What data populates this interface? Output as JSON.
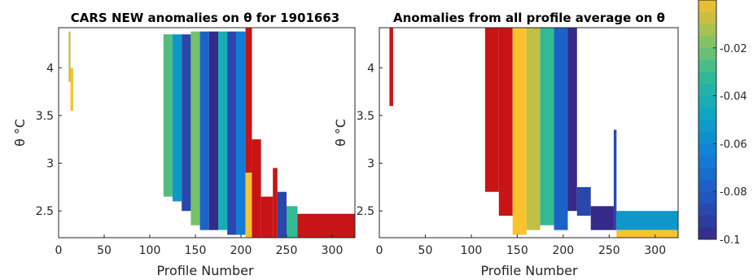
{
  "chart_data": [
    {
      "type": "heatmap",
      "title": "CARS NEW anomalies on θ for 1901663",
      "xlabel": "Profile Number",
      "ylabel": "θ °C",
      "xlim": [
        0,
        325
      ],
      "ylim": [
        2.22,
        4.42
      ],
      "xticks": [
        0,
        50,
        100,
        150,
        200,
        250,
        300
      ],
      "yticks": [
        2.5,
        3,
        3.5,
        4
      ],
      "colormap": "parula-like",
      "bands": [
        {
          "x0": 11,
          "x1": 13,
          "y0": 3.85,
          "y1": 4.38,
          "value": -0.02
        },
        {
          "x0": 13,
          "x1": 16,
          "y0": 3.55,
          "y1": 4.0,
          "value": -0.01
        },
        {
          "x0": 115,
          "x1": 125,
          "y0": 2.65,
          "y1": 4.35,
          "value": -0.035
        },
        {
          "x0": 125,
          "x1": 135,
          "y0": 2.6,
          "y1": 4.35,
          "value": -0.06
        },
        {
          "x0": 135,
          "x1": 145,
          "y0": 2.5,
          "y1": 4.35,
          "value": -0.09
        },
        {
          "x0": 145,
          "x1": 155,
          "y0": 2.35,
          "y1": 4.38,
          "value": -0.03
        },
        {
          "x0": 155,
          "x1": 165,
          "y0": 2.3,
          "y1": 4.38,
          "value": -0.08
        },
        {
          "x0": 165,
          "x1": 175,
          "y0": 2.3,
          "y1": 4.38,
          "value": -0.1
        },
        {
          "x0": 175,
          "x1": 185,
          "y0": 2.3,
          "y1": 4.38,
          "value": -0.05
        },
        {
          "x0": 185,
          "x1": 195,
          "y0": 2.25,
          "y1": 4.38,
          "value": -0.09
        },
        {
          "x0": 195,
          "x1": 205,
          "y0": 2.25,
          "y1": 4.38,
          "value": -0.07
        },
        {
          "x0": 205,
          "x1": 212,
          "y0": 2.9,
          "y1": 4.42,
          "value": 0.0
        },
        {
          "x0": 205,
          "x1": 212,
          "y0": 2.22,
          "y1": 2.9,
          "value": -0.01
        },
        {
          "x0": 212,
          "x1": 222,
          "y0": 2.22,
          "y1": 3.25,
          "value": 0.0
        },
        {
          "x0": 222,
          "x1": 235,
          "y0": 2.22,
          "y1": 2.65,
          "value": 0.0
        },
        {
          "x0": 235,
          "x1": 240,
          "y0": 2.22,
          "y1": 2.95,
          "value": 0.0
        },
        {
          "x0": 240,
          "x1": 250,
          "y0": 2.22,
          "y1": 2.7,
          "value": -0.09
        },
        {
          "x0": 250,
          "x1": 262,
          "y0": 2.22,
          "y1": 2.55,
          "value": -0.04
        },
        {
          "x0": 262,
          "x1": 325,
          "y0": 2.22,
          "y1": 2.47,
          "value": 0.0
        }
      ]
    },
    {
      "type": "heatmap",
      "title": "Anomalies from all profile average on θ",
      "xlabel": "Profile Number",
      "ylabel": "θ °C",
      "xlim": [
        0,
        325
      ],
      "ylim": [
        2.22,
        4.42
      ],
      "xticks": [
        0,
        50,
        100,
        150,
        200,
        250,
        300
      ],
      "yticks": [
        2.5,
        3,
        3.5,
        4
      ],
      "colormap": "parula-like",
      "bands": [
        {
          "x0": 11,
          "x1": 15,
          "y0": 3.6,
          "y1": 4.42,
          "value": 0.0
        },
        {
          "x0": 115,
          "x1": 130,
          "y0": 2.7,
          "y1": 4.42,
          "value": 0.0
        },
        {
          "x0": 130,
          "x1": 145,
          "y0": 2.45,
          "y1": 4.42,
          "value": 0.0
        },
        {
          "x0": 145,
          "x1": 160,
          "y0": 2.25,
          "y1": 4.42,
          "value": -0.01
        },
        {
          "x0": 160,
          "x1": 175,
          "y0": 2.3,
          "y1": 4.42,
          "value": -0.02
        },
        {
          "x0": 175,
          "x1": 190,
          "y0": 2.35,
          "y1": 4.42,
          "value": -0.04
        },
        {
          "x0": 190,
          "x1": 205,
          "y0": 2.3,
          "y1": 4.42,
          "value": -0.08
        },
        {
          "x0": 205,
          "x1": 215,
          "y0": 2.5,
          "y1": 4.42,
          "value": -0.1
        },
        {
          "x0": 215,
          "x1": 230,
          "y0": 2.45,
          "y1": 2.75,
          "value": -0.09
        },
        {
          "x0": 230,
          "x1": 255,
          "y0": 2.3,
          "y1": 2.55,
          "value": -0.1
        },
        {
          "x0": 255,
          "x1": 258,
          "y0": 2.3,
          "y1": 3.35,
          "value": -0.09
        },
        {
          "x0": 258,
          "x1": 325,
          "y0": 2.3,
          "y1": 2.5,
          "value": -0.06
        },
        {
          "x0": 258,
          "x1": 325,
          "y0": 2.22,
          "y1": 2.3,
          "value": -0.01
        }
      ]
    }
  ],
  "colorbar": {
    "min": -0.1,
    "max": 0,
    "ticks": [
      -0.02,
      -0.04,
      -0.06,
      -0.08,
      -0.1
    ],
    "tick_labels": [
      "-0.02",
      "-0.04",
      "-0.06",
      "-0.08",
      "-0.1"
    ]
  }
}
